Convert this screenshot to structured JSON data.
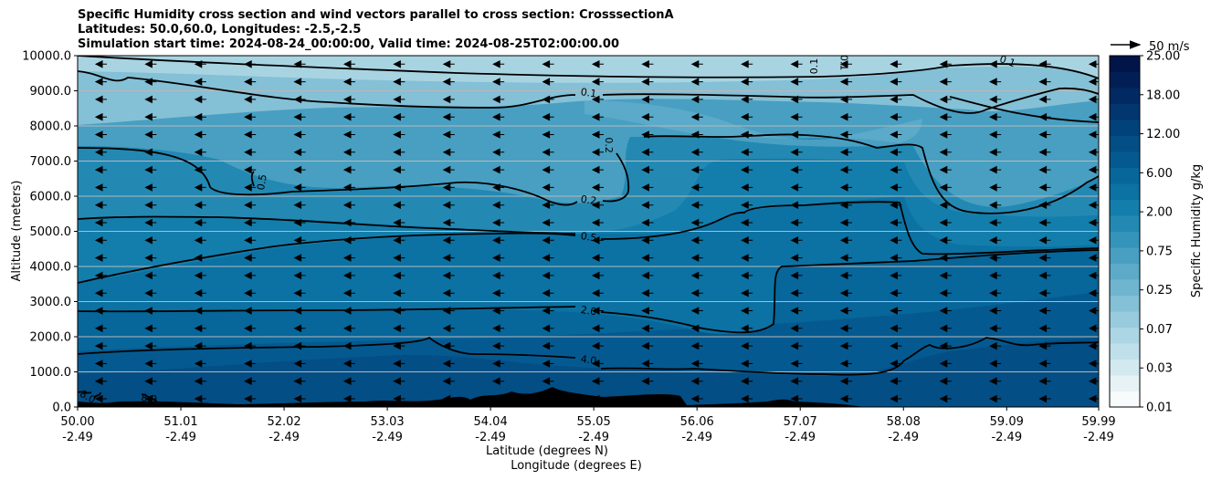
{
  "title_lines": [
    "Specific Humidity cross section and wind vectors parallel to cross section: CrosssectionA",
    "Latitudes: 50.0,60.0, Longitudes: -2.5,-2.5",
    "Simulation start time: 2024-08-24_00:00:00, Valid time: 2024-08-25T02:00:00.00"
  ],
  "chart_data": {
    "type": "heatmap",
    "ylabel": "Altitude (meters)",
    "xlabel_lat": "Latitude (degrees N)",
    "xlabel_lon": "Longitude (degrees E)",
    "ylim": [
      0,
      10000
    ],
    "yticks": [
      "0.0",
      "1000.0",
      "2000.0",
      "3000.0",
      "4000.0",
      "5000.0",
      "6000.0",
      "7000.0",
      "8000.0",
      "9000.0",
      "10000.0"
    ],
    "xlim": [
      50.0,
      59.99
    ],
    "xticks": [
      {
        "lat": "50.00",
        "lon": "-2.49"
      },
      {
        "lat": "51.01",
        "lon": "-2.49"
      },
      {
        "lat": "52.02",
        "lon": "-2.49"
      },
      {
        "lat": "53.03",
        "lon": "-2.49"
      },
      {
        "lat": "54.04",
        "lon": "-2.49"
      },
      {
        "lat": "55.05",
        "lon": "-2.49"
      },
      {
        "lat": "56.06",
        "lon": "-2.49"
      },
      {
        "lat": "57.07",
        "lon": "-2.49"
      },
      {
        "lat": "58.08",
        "lon": "-2.49"
      },
      {
        "lat": "59.09",
        "lon": "-2.49"
      },
      {
        "lat": "59.99",
        "lon": "-2.49"
      }
    ],
    "grid": "horizontal",
    "colorbar": {
      "label": "Specific Humidity g/kg",
      "ticks": [
        "0.01",
        "0.03",
        "0.07",
        "0.25",
        "0.75",
        "2.00",
        "6.00",
        "12.00",
        "18.00",
        "25.00"
      ],
      "colors": [
        "#f7fbfc",
        "#e6f2f5",
        "#d2e9ef",
        "#bfe0ea",
        "#acd6e4",
        "#98cbdd",
        "#84c0d6",
        "#70b5cf",
        "#5caac8",
        "#489fc1",
        "#3594ba",
        "#2389b3",
        "#137eac",
        "#0b72a3",
        "#07669a",
        "#045a90",
        "#034e85",
        "#02427a",
        "#02366e",
        "#022a62",
        "#021f55",
        "#021548"
      ]
    },
    "wind_key": {
      "label": "50 m/s",
      "speed": 50
    },
    "wind": {
      "direction": "southward",
      "description": "uniform leftward vectors parallel to cross section"
    },
    "contours": [
      {
        "level": "0.1",
        "label_lat": 55.0,
        "label_alt": 8950
      },
      {
        "level": "0.2",
        "label_lat": 55.0,
        "label_alt": 5900
      },
      {
        "level": "0.5",
        "label_lat": 55.0,
        "label_alt": 4850
      },
      {
        "level": "2.0",
        "label_lat": 55.0,
        "label_alt": 2750
      },
      {
        "level": "4.0",
        "label_lat": 55.0,
        "label_alt": 1350
      },
      {
        "level": "8.0",
        "label_lat": 50.7,
        "label_alt": 250
      }
    ],
    "inline_labels": [
      {
        "text": "0.5",
        "lat": 51.8,
        "alt": 6400,
        "rot": -80
      },
      {
        "text": "0.2",
        "lat": 55.2,
        "alt": 7450,
        "rot": 90
      },
      {
        "text": "0.1",
        "lat": 57.2,
        "alt": 9700,
        "rot": -90
      },
      {
        "text": "0.1",
        "lat": 57.5,
        "alt": 9800,
        "rot": 90
      },
      {
        "text": "0.1",
        "lat": 59.1,
        "alt": 9850,
        "rot": 20
      },
      {
        "text": "8.0",
        "lat": 50.1,
        "alt": 300,
        "rot": 30
      }
    ]
  }
}
